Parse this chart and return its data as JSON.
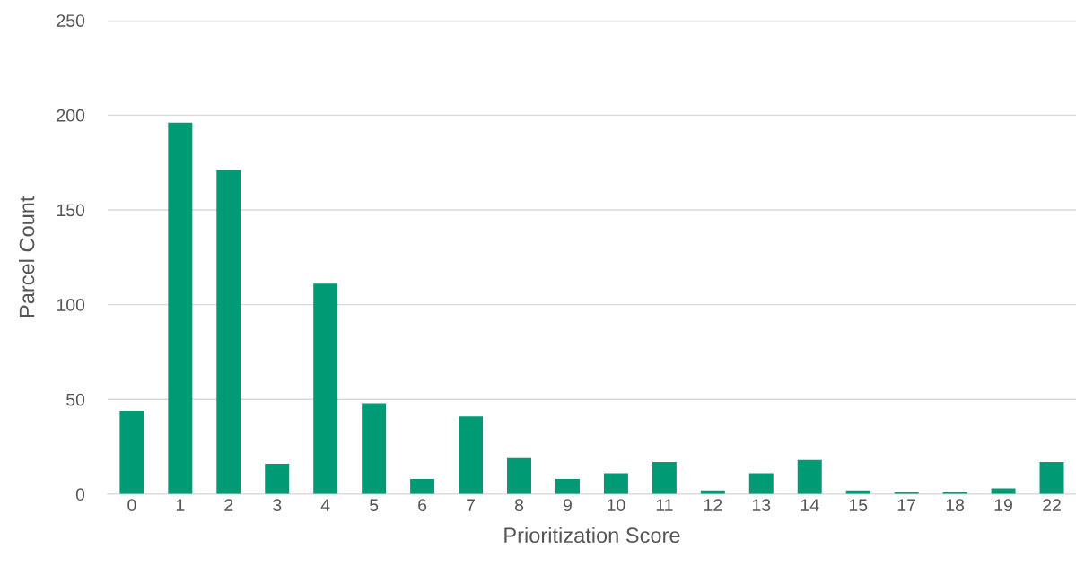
{
  "chart_data": {
    "type": "bar",
    "xlabel": "Prioritization Score",
    "ylabel": "Parcel Count",
    "categories": [
      "0",
      "1",
      "2",
      "3",
      "4",
      "5",
      "6",
      "7",
      "8",
      "9",
      "10",
      "11",
      "12",
      "13",
      "14",
      "15",
      "17",
      "18",
      "19",
      "22"
    ],
    "values": [
      44,
      196,
      171,
      16,
      111,
      48,
      8,
      41,
      19,
      8,
      11,
      17,
      2,
      11,
      18,
      2,
      1,
      1,
      3,
      17
    ],
    "color": "#009a74",
    "ylim": [
      0,
      250
    ],
    "yticks": [
      0,
      50,
      100,
      150,
      200,
      250
    ],
    "grid": "y",
    "legend": false
  }
}
